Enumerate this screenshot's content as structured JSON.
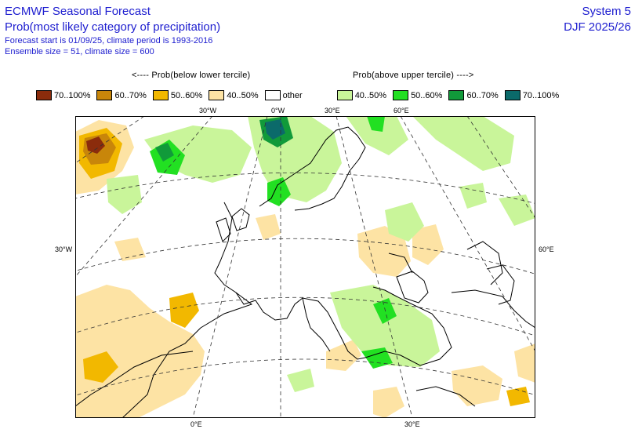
{
  "header": {
    "title": "ECMWF Seasonal Forecast",
    "subtitle": "Prob(most likely category of precipitation)",
    "forecast_info": "Forecast start is 01/09/25, climate period is 1993-2016",
    "ensemble_info": "Ensemble size = 51, climate size = 600",
    "system": "System 5",
    "season": "DJF 2025/26"
  },
  "legend": {
    "below_heading": "<---- Prob(below lower tercile)",
    "above_heading": "Prob(above upper tercile) ---->",
    "items": [
      {
        "label": "70..100%",
        "color": "#8b2c0c"
      },
      {
        "label": "60..70%",
        "color": "#c8860a"
      },
      {
        "label": "50..60%",
        "color": "#f2b800"
      },
      {
        "label": "40..50%",
        "color": "#fde3a4"
      },
      {
        "label": "other",
        "color": "#ffffff"
      },
      {
        "label": "40..50%",
        "color": "#c9f59a"
      },
      {
        "label": "50..60%",
        "color": "#22e022"
      },
      {
        "label": "60..70%",
        "color": "#119a3a"
      },
      {
        "label": "70..100%",
        "color": "#0b6a6a"
      }
    ]
  },
  "axes": {
    "top": [
      "30°W",
      "0°W",
      "30°E",
      "60°E"
    ],
    "left": "30°W",
    "right": "60°E",
    "bottom": [
      "0°E",
      "30°E"
    ]
  }
}
